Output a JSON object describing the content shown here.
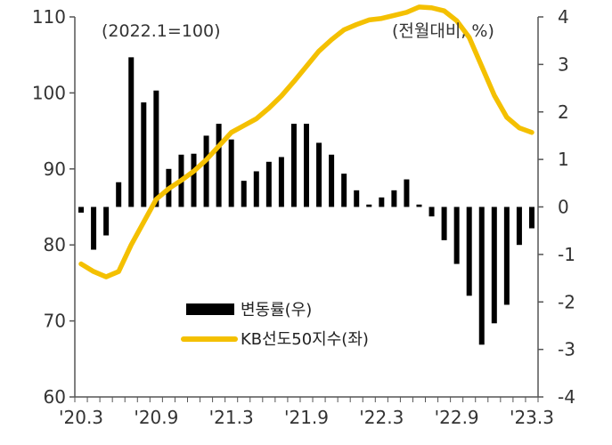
{
  "chart_data": {
    "type": "bar+line",
    "note_left": "(2022.1=100)",
    "note_right": "(전월대비, %)",
    "x_ticks": [
      "'20.3",
      "'20.9",
      "'21.3",
      "'21.9",
      "'22.3",
      "'22.9",
      "'23.3"
    ],
    "months": [
      "2020-03",
      "2020-04",
      "2020-05",
      "2020-06",
      "2020-07",
      "2020-08",
      "2020-09",
      "2020-10",
      "2020-11",
      "2020-12",
      "2021-01",
      "2021-02",
      "2021-03",
      "2021-04",
      "2021-05",
      "2021-06",
      "2021-07",
      "2021-08",
      "2021-09",
      "2021-10",
      "2021-11",
      "2021-12",
      "2022-01",
      "2022-02",
      "2022-03",
      "2022-04",
      "2022-05",
      "2022-06",
      "2022-07",
      "2022-08",
      "2022-09",
      "2022-10",
      "2022-11",
      "2022-12",
      "2023-01",
      "2023-02",
      "2023-03"
    ],
    "left_axis": {
      "ylim": [
        60,
        110
      ],
      "ticks": [
        "60",
        "70",
        "80",
        "90",
        "100",
        "110"
      ]
    },
    "right_axis": {
      "ylim": [
        -4,
        4
      ],
      "ticks": [
        "-4",
        "-3",
        "-2",
        "-1",
        "0",
        "1",
        "2",
        "3",
        "4"
      ]
    },
    "series": [
      {
        "name": "변동률(우)",
        "type": "bar",
        "axis": "right",
        "color": "#000000",
        "values": [
          -0.12,
          -0.9,
          -0.6,
          0.52,
          3.15,
          2.2,
          2.45,
          0.8,
          1.1,
          1.12,
          1.5,
          1.75,
          1.42,
          0.55,
          0.75,
          0.95,
          1.05,
          1.75,
          1.75,
          1.35,
          1.1,
          0.7,
          0.35,
          0.05,
          0.2,
          0.35,
          0.58,
          0.05,
          -0.2,
          -0.7,
          -1.2,
          -1.87,
          -2.9,
          -2.45,
          -2.06,
          -0.8,
          -0.45
        ]
      },
      {
        "name": "KB선도50지수(좌)",
        "type": "line",
        "axis": "left",
        "color": "#F4C000",
        "values": [
          77.5,
          76.5,
          75.8,
          76.5,
          80,
          83,
          86,
          87.4,
          88.5,
          89.7,
          91.2,
          93,
          94.8,
          95.7,
          96.6,
          98,
          99.6,
          101.5,
          103.5,
          105.5,
          107,
          108.3,
          109,
          109.6,
          109.8,
          110.2,
          110.6,
          111.3,
          111.2,
          110.8,
          109.5,
          107.3,
          103.5,
          99.7,
          96.8,
          95.4,
          94.8
        ]
      }
    ],
    "legend_position": "bottom-center"
  }
}
